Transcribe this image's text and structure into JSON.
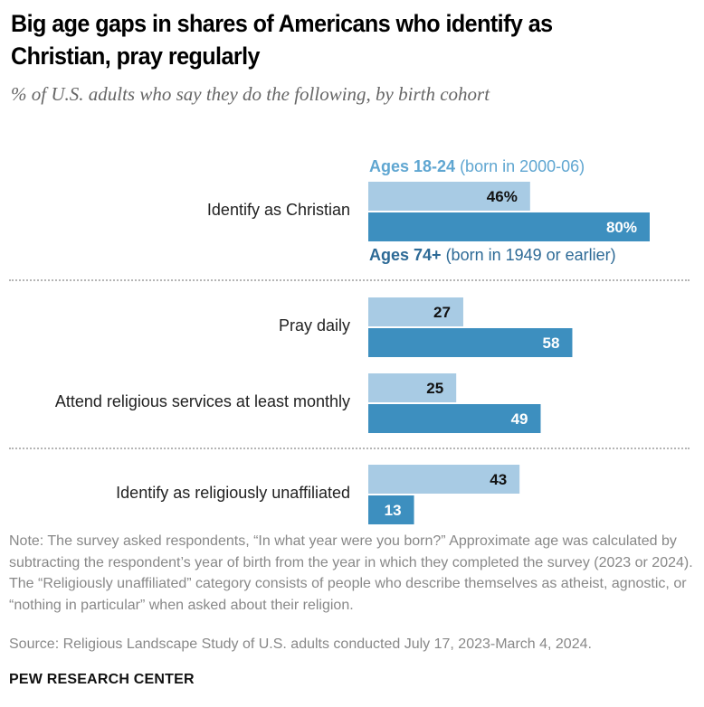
{
  "header": {
    "title": "Big age gaps in shares of Americans who identify as Christian, pray regularly",
    "subtitle": "% of U.S. adults who say they do the following, by birth cohort"
  },
  "legend": {
    "young_bold": "Ages 18-24",
    "young_rest": " (born in 2000-06)",
    "old_bold": "Ages 74+",
    "old_rest": " (born in 1949 or earlier)"
  },
  "colors": {
    "young": "#a8cbe4",
    "old": "#3d8fbf",
    "young_text": "#5fa6d1",
    "old_text": "#2d6a96"
  },
  "chart_data": {
    "type": "bar",
    "orientation": "horizontal",
    "title": "Big age gaps in shares of Americans who identify as Christian, pray regularly",
    "subtitle": "% of U.S. adults who say they do the following, by birth cohort",
    "categories": [
      "Identify as Christian",
      "Pray daily",
      "Attend religious services at least monthly",
      "Identify as religiously unaffiliated"
    ],
    "series": [
      {
        "name": "Ages 18-24 (born in 2000-06)",
        "values": [
          46,
          27,
          25,
          43
        ],
        "labels": [
          "46%",
          "27",
          "25",
          "43"
        ]
      },
      {
        "name": "Ages 74+ (born in 1949 or earlier)",
        "values": [
          80,
          58,
          49,
          13
        ],
        "labels": [
          "80%",
          "58",
          "49",
          "13"
        ]
      }
    ],
    "xlabel": "",
    "ylabel": "",
    "xlim": [
      0,
      80
    ],
    "grid": false,
    "legend": "inline-top"
  },
  "footer": {
    "note": "Note: The survey asked respondents, “In what year were you born?” Approximate age was calculated by subtracting the respondent’s year of birth from the year in which they completed the survey (2023 or 2024). The “Religiously unaffiliated” category consists of people who describe themselves as atheist, agnostic, or “nothing in particular” when asked about their religion.",
    "source": "Source: Religious Landscape Study of U.S. adults conducted July 17, 2023-March 4, 2024.",
    "brand": "PEW RESEARCH CENTER"
  }
}
